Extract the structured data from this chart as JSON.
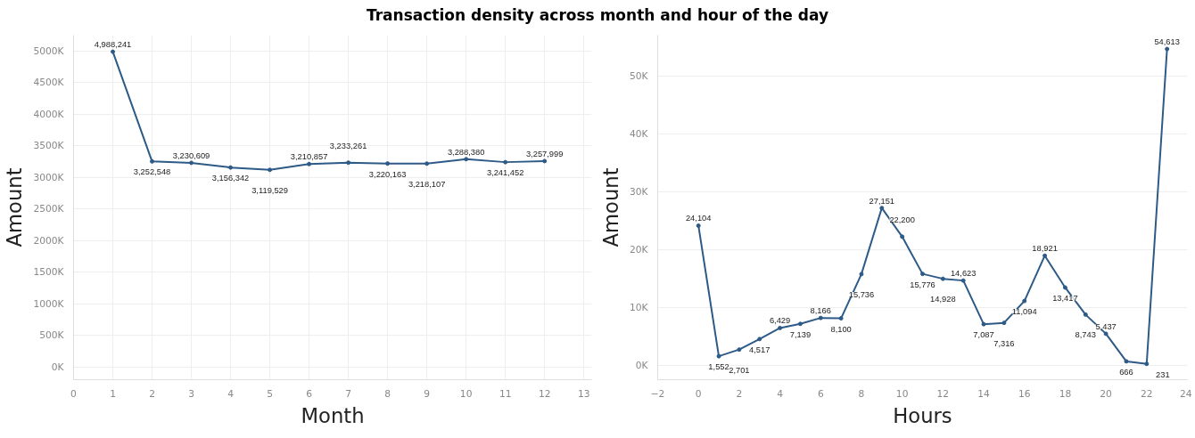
{
  "chart_data": [
    {
      "type": "line",
      "title": "Transaction density across month and hour of the day",
      "xlabel": "Month",
      "ylabel": "Amount",
      "x": [
        1,
        2,
        3,
        4,
        5,
        6,
        7,
        8,
        9,
        10,
        11,
        12
      ],
      "series": [
        {
          "color": "#2d5a87",
          "values": [
            4988241,
            3252548,
            3230609,
            3156342,
            3119529,
            3210857,
            3233261,
            3220163,
            3218107,
            3288380,
            3241452,
            3257999
          ],
          "value_labels": [
            "4,988,241",
            "3,252,548",
            "3,230,609",
            "3,156,342",
            "3,119,529",
            "3,210,857",
            "3,233,261",
            "3,220,163",
            "3,218,107",
            "3,288,380",
            "3,241,452",
            "3,257,999"
          ]
        }
      ],
      "xlim": [
        0,
        13.2
      ],
      "xticks": [
        0,
        1,
        2,
        3,
        4,
        5,
        6,
        7,
        8,
        9,
        10,
        11,
        12,
        13
      ],
      "ylim": [
        -200000,
        5250000
      ],
      "yticks": [
        {
          "value": 0,
          "label": "0K"
        },
        {
          "value": 500000,
          "label": "500K"
        },
        {
          "value": 1000000,
          "label": "1000K"
        },
        {
          "value": 1500000,
          "label": "1500K"
        },
        {
          "value": 2000000,
          "label": "2000K"
        },
        {
          "value": 2500000,
          "label": "2500K"
        },
        {
          "value": 3000000,
          "label": "3000K"
        },
        {
          "value": 3500000,
          "label": "3500K"
        },
        {
          "value": 4000000,
          "label": "4000K"
        },
        {
          "value": 4500000,
          "label": "4500K"
        },
        {
          "value": 5000000,
          "label": "5000K"
        }
      ],
      "grid": true,
      "marker": "circle",
      "line_style": "solid"
    },
    {
      "type": "line",
      "xlabel": "Hours",
      "ylabel": "Amount",
      "x": [
        0,
        1,
        2,
        3,
        4,
        5,
        6,
        7,
        8,
        9,
        10,
        11,
        12,
        13,
        14,
        15,
        16,
        17,
        18,
        19,
        20,
        21,
        22,
        23
      ],
      "series": [
        {
          "color": "#2d5a87",
          "values": [
            24104,
            1552,
            2701,
            4517,
            6429,
            7139,
            8166,
            8100,
            15736,
            27151,
            22200,
            15776,
            14928,
            14623,
            7087,
            7316,
            11094,
            18921,
            13417,
            8743,
            5437,
            666,
            231,
            54613
          ],
          "value_labels": [
            "24,104",
            "1,552",
            "2,701",
            "4,517",
            "6,429",
            "7,139",
            "8,166",
            "8,100",
            "15,736",
            "27,151",
            "22,200",
            "15,776",
            "14,928",
            "14,623",
            "7,087",
            "7,316",
            "11,094",
            "18,921",
            "13,417",
            "8,743",
            "5,437",
            "666",
            "231",
            "54,613"
          ]
        }
      ],
      "xlim": [
        -2,
        24
      ],
      "xticks": [
        -2,
        0,
        2,
        4,
        6,
        8,
        10,
        12,
        14,
        16,
        18,
        20,
        22,
        24
      ],
      "ylim": [
        -2500,
        57000
      ],
      "yticks": [
        {
          "value": 0,
          "label": "0K"
        },
        {
          "value": 10000,
          "label": "10K"
        },
        {
          "value": 20000,
          "label": "20K"
        },
        {
          "value": 30000,
          "label": "30K"
        },
        {
          "value": 40000,
          "label": "40K"
        },
        {
          "value": 50000,
          "label": "50K"
        }
      ],
      "grid": "y",
      "marker": "circle",
      "line_style": "solid"
    }
  ]
}
